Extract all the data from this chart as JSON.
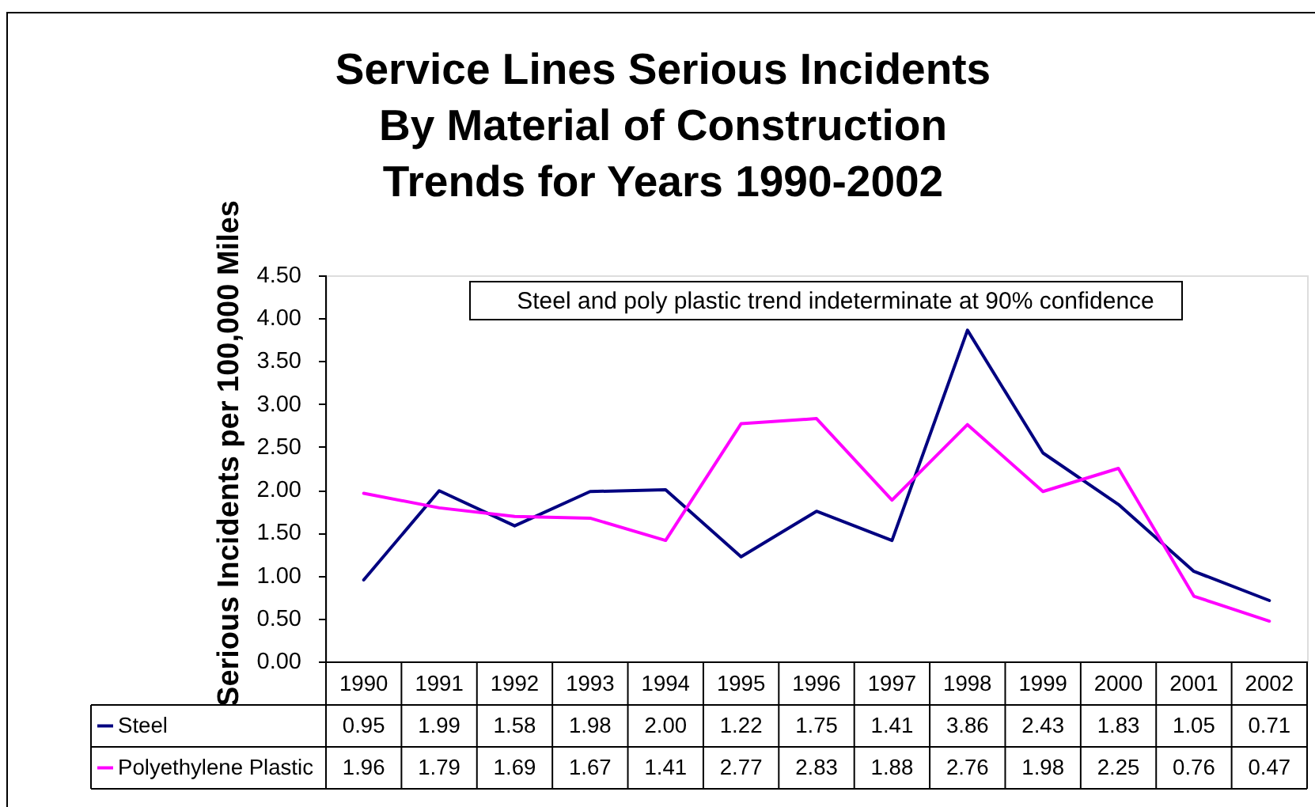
{
  "chart_data": {
    "type": "line",
    "title": "Service Lines Serious Incidents\nBy Material of Construction\nTrends for Years 1990-2002",
    "ylabel": "Serious Incidents per 100,000 Miles",
    "categories": [
      "1990",
      "1991",
      "1992",
      "1993",
      "1994",
      "1995",
      "1996",
      "1997",
      "1998",
      "1999",
      "2000",
      "2001",
      "2002"
    ],
    "series": [
      {
        "name": "Steel",
        "color": "#000080",
        "values": [
          0.95,
          1.99,
          1.58,
          1.98,
          2.0,
          1.22,
          1.75,
          1.41,
          3.86,
          2.43,
          1.83,
          1.05,
          0.71
        ],
        "value_labels": [
          "0.95",
          "1.99",
          "1.58",
          "1.98",
          "2.00",
          "1.22",
          "1.75",
          "1.41",
          "3.86",
          "2.43",
          "1.83",
          "1.05",
          "0.71"
        ]
      },
      {
        "name": "Polyethylene Plastic",
        "color": "#ff00ff",
        "values": [
          1.96,
          1.79,
          1.69,
          1.67,
          1.41,
          2.77,
          2.83,
          1.88,
          2.76,
          1.98,
          2.25,
          0.76,
          0.47
        ],
        "value_labels": [
          "1.96",
          "1.79",
          "1.69",
          "1.67",
          "1.41",
          "2.77",
          "2.83",
          "1.88",
          "2.76",
          "1.98",
          "2.25",
          "0.76",
          "0.47"
        ]
      }
    ],
    "ylim": [
      0,
      4.5
    ],
    "yticks": [
      {
        "value": 0,
        "label": "0.00"
      },
      {
        "value": 0.5,
        "label": "0.50"
      },
      {
        "value": 1,
        "label": "1.00"
      },
      {
        "value": 1.5,
        "label": "1.50"
      },
      {
        "value": 2,
        "label": "2.00"
      },
      {
        "value": 2.5,
        "label": "2.50"
      },
      {
        "value": 3,
        "label": "3.00"
      },
      {
        "value": 3.5,
        "label": "3.50"
      },
      {
        "value": 4,
        "label": "4.00"
      },
      {
        "value": 4.5,
        "label": "4.50"
      }
    ],
    "legend": "bottom",
    "annotations": [
      "Steel and poly plastic trend indeterminate at 90% confidence"
    ]
  }
}
